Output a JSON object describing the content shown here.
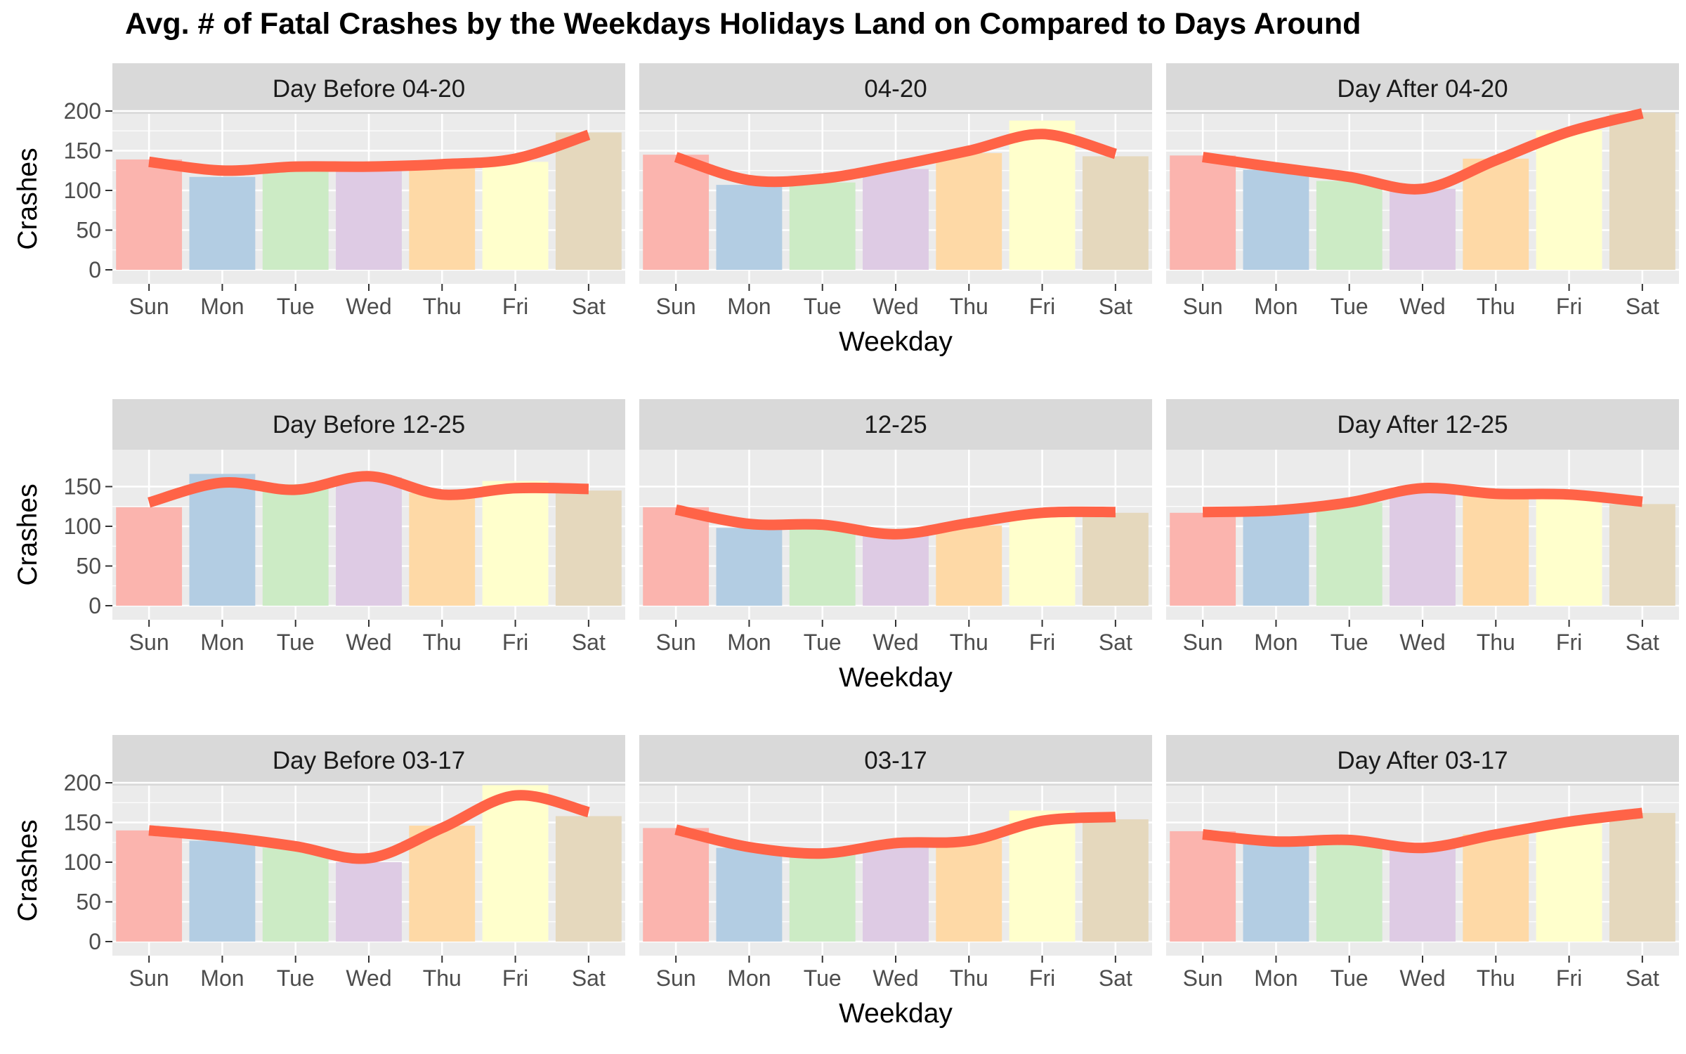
{
  "chart_data": {
    "type": "bar",
    "title": "Avg. # of Fatal Crashes by the Weekdays Holidays Land on Compared to Days Around",
    "xlabel": "Weekday",
    "ylabel": "Crashes",
    "categories": [
      "Sun",
      "Mon",
      "Tue",
      "Wed",
      "Thu",
      "Fri",
      "Sat"
    ],
    "bar_colors": [
      "#FBB4AE",
      "#B3CDE3",
      "#CCEBC5",
      "#DECBE4",
      "#FED9A6",
      "#FFFFCC",
      "#E5D8BD"
    ],
    "line_color": "#FF6347",
    "panel_background": "#EBEBEB",
    "strip_background": "#D9D9D9",
    "grid": true,
    "rows": [
      {
        "ylim": [
          0,
          200
        ],
        "yticks": [
          0,
          50,
          100,
          150,
          200
        ],
        "panels": [
          {
            "label": "Day Before 04-20",
            "values": [
              139,
              117,
              129,
              128,
              131,
              136,
              173
            ],
            "trend": [
              136,
              125,
              130,
              130,
              133,
              140,
              170
            ]
          },
          {
            "label": "04-20",
            "values": [
              145,
              107,
              110,
              127,
              147,
              188,
              143
            ],
            "trend": [
              142,
              113,
              115,
              131,
              150,
              171,
              146
            ]
          },
          {
            "label": "Day After 04-20",
            "values": [
              144,
              126,
              112,
              102,
              140,
              176,
              198
            ],
            "trend": [
              142,
              129,
              117,
              102,
              138,
              174,
              197
            ]
          }
        ]
      },
      {
        "ylim": [
          0,
          150
        ],
        "yticks": [
          0,
          50,
          100,
          150
        ],
        "panels": [
          {
            "label": "Day Before 12-25",
            "values": [
              124,
              166,
              153,
              162,
              142,
              157,
              145
            ],
            "trend": [
              130,
              155,
              146,
              163,
              140,
              148,
              147
            ]
          },
          {
            "label": "12-25",
            "values": [
              124,
              98,
              102,
              88,
              101,
              117,
              117
            ],
            "trend": [
              121,
              103,
              102,
              90,
              104,
              117,
              118
            ]
          },
          {
            "label": "Day After 12-25",
            "values": [
              117,
              117,
              130,
              147,
              141,
              137,
              128
            ],
            "trend": [
              118,
              120,
              130,
              148,
              141,
              140,
              131
            ]
          }
        ]
      },
      {
        "ylim": [
          0,
          200
        ],
        "yticks": [
          0,
          50,
          100,
          150,
          200
        ],
        "panels": [
          {
            "label": "Day Before 03-17",
            "values": [
              140,
              127,
              118,
              100,
              146,
              197,
              158
            ],
            "trend": [
              140,
              132,
              120,
              105,
              143,
              184,
              163
            ]
          },
          {
            "label": "03-17",
            "values": [
              143,
              118,
              110,
              119,
              129,
              165,
              154
            ],
            "trend": [
              141,
              119,
              111,
              124,
              127,
              152,
              157
            ]
          },
          {
            "label": "Day After 03-17",
            "values": [
              139,
              124,
              125,
              119,
              135,
              150,
              162
            ],
            "trend": [
              135,
              126,
              128,
              118,
              135,
              151,
              162
            ]
          }
        ]
      }
    ]
  }
}
